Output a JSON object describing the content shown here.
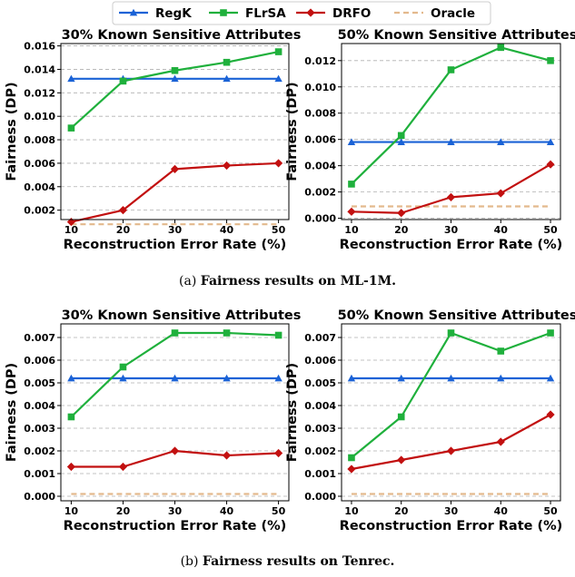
{
  "legend": {
    "entries": [
      {
        "name": "RegK",
        "color": "#1a62d6",
        "marker": "triangle"
      },
      {
        "name": "FLrSA",
        "color": "#1fb03c",
        "marker": "square"
      },
      {
        "name": "DRFO",
        "color": "#c21010",
        "marker": "diamond"
      },
      {
        "name": "Oracle",
        "color": "#e3b98d",
        "marker": "none",
        "dashed": true
      }
    ]
  },
  "captions": {
    "a_label": "(a)",
    "a_text": "Fairness results on ML-1M.",
    "b_label": "(b)",
    "b_text": "Fairness results on Tenrec."
  },
  "chart_data": [
    {
      "type": "line",
      "title": "30% Known Sensitive Attributes",
      "xlabel": "Reconstruction Error Rate (%)",
      "ylabel": "Fairness (DP)",
      "x": [
        10,
        20,
        30,
        40,
        50
      ],
      "xlim": [
        8,
        52
      ],
      "ylim": [
        0.0012,
        0.0162
      ],
      "yticks": [
        0.002,
        0.004,
        0.006,
        0.008,
        0.01,
        0.012,
        0.014,
        0.016
      ],
      "ytick_labels": [
        "0.002",
        "0.004",
        "0.006",
        "0.008",
        "0.010",
        "0.012",
        "0.014",
        "0.016"
      ],
      "grid": "y-dashed",
      "series": [
        {
          "name": "RegK",
          "values": [
            0.0132,
            0.0132,
            0.0132,
            0.0132,
            0.0132
          ]
        },
        {
          "name": "FLrSA",
          "values": [
            0.009,
            0.013,
            0.0139,
            0.0146,
            0.0155
          ]
        },
        {
          "name": "DRFO",
          "values": [
            0.001,
            0.002,
            0.0055,
            0.0058,
            0.006
          ]
        },
        {
          "name": "Oracle",
          "values": [
            0.0008,
            0.0008,
            0.0008,
            0.0008,
            0.0008
          ]
        }
      ]
    },
    {
      "type": "line",
      "title": "50% Known Sensitive Attributes",
      "xlabel": "Reconstruction Error Rate (%)",
      "ylabel": "Fairness (DP)",
      "x": [
        10,
        20,
        30,
        40,
        50
      ],
      "xlim": [
        8,
        52
      ],
      "ylim": [
        -0.0001,
        0.0133
      ],
      "yticks": [
        0.0,
        0.002,
        0.004,
        0.006,
        0.008,
        0.01,
        0.012
      ],
      "ytick_labels": [
        "0.000",
        "0.002",
        "0.004",
        "0.006",
        "0.008",
        "0.010",
        "0.012"
      ],
      "grid": "y-dashed",
      "series": [
        {
          "name": "RegK",
          "values": [
            0.0058,
            0.0058,
            0.0058,
            0.0058,
            0.0058
          ]
        },
        {
          "name": "FLrSA",
          "values": [
            0.0026,
            0.0063,
            0.0113,
            0.013,
            0.012
          ]
        },
        {
          "name": "DRFO",
          "values": [
            0.0005,
            0.0004,
            0.0016,
            0.0019,
            0.0041
          ]
        },
        {
          "name": "Oracle",
          "values": [
            0.0009,
            0.0009,
            0.0009,
            0.0009,
            0.0009
          ]
        }
      ]
    },
    {
      "type": "line",
      "title": "30% Known Sensitive Attributes",
      "xlabel": "Reconstruction Error Rate (%)",
      "ylabel": "Fairness (DP)",
      "x": [
        10,
        20,
        30,
        40,
        50
      ],
      "xlim": [
        8,
        52
      ],
      "ylim": [
        -0.0002,
        0.0076
      ],
      "yticks": [
        0.0,
        0.001,
        0.002,
        0.003,
        0.004,
        0.005,
        0.006,
        0.007
      ],
      "ytick_labels": [
        "0.000",
        "0.001",
        "0.002",
        "0.003",
        "0.004",
        "0.005",
        "0.006",
        "0.007"
      ],
      "grid": "y-dashed",
      "series": [
        {
          "name": "RegK",
          "values": [
            0.0052,
            0.0052,
            0.0052,
            0.0052,
            0.0052
          ]
        },
        {
          "name": "FLrSA",
          "values": [
            0.0035,
            0.0057,
            0.0072,
            0.0072,
            0.0071
          ]
        },
        {
          "name": "DRFO",
          "values": [
            0.0013,
            0.0013,
            0.002,
            0.0018,
            0.0019
          ]
        },
        {
          "name": "Oracle",
          "values": [
            0.0001,
            0.0001,
            0.0001,
            0.0001,
            0.0001
          ]
        }
      ]
    },
    {
      "type": "line",
      "title": "50% Known Sensitive Attributes",
      "xlabel": "Reconstruction Error Rate (%)",
      "ylabel": "Fairness (DP)",
      "x": [
        10,
        20,
        30,
        40,
        50
      ],
      "xlim": [
        8,
        52
      ],
      "ylim": [
        -0.0002,
        0.0076
      ],
      "yticks": [
        0.0,
        0.001,
        0.002,
        0.003,
        0.004,
        0.005,
        0.006,
        0.007
      ],
      "ytick_labels": [
        "0.000",
        "0.001",
        "0.002",
        "0.003",
        "0.004",
        "0.005",
        "0.006",
        "0.007"
      ],
      "grid": "y-dashed",
      "series": [
        {
          "name": "RegK",
          "values": [
            0.0052,
            0.0052,
            0.0052,
            0.0052,
            0.0052
          ]
        },
        {
          "name": "FLrSA",
          "values": [
            0.0017,
            0.0035,
            0.0072,
            0.0064,
            0.0072
          ]
        },
        {
          "name": "DRFO",
          "values": [
            0.0012,
            0.0016,
            0.002,
            0.0024,
            0.0036
          ]
        },
        {
          "name": "Oracle",
          "values": [
            0.0001,
            0.0001,
            0.0001,
            0.0001,
            0.0001
          ]
        }
      ]
    }
  ]
}
